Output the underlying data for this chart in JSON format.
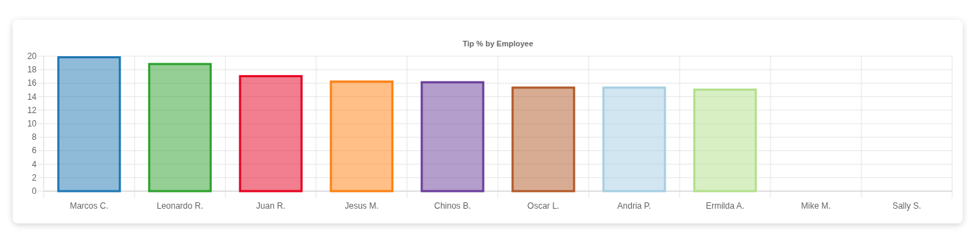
{
  "chart_data": {
    "type": "bar",
    "title": "Tip % by Employee",
    "categories": [
      "Marcos C.",
      "Leonardo R.",
      "Juan R.",
      "Jesus M.",
      "Chinos B.",
      "Oscar L.",
      "Andria P.",
      "Ermilda A.",
      "Mike M.",
      "Sally S."
    ],
    "values": [
      20,
      19,
      17.2,
      16.4,
      16.3,
      15.5,
      15.5,
      15.2,
      0,
      0
    ],
    "colors": [
      "#1f77b4",
      "#2ca02c",
      "#e6001f",
      "#ff7f0e",
      "#6a3d9a",
      "#b15928",
      "#a6cee3",
      "#b2df8a",
      "#999999",
      "#999999"
    ],
    "ylim": [
      0,
      20
    ],
    "yticks": [
      0,
      2,
      4,
      6,
      8,
      10,
      12,
      14,
      16,
      18,
      20
    ],
    "grid": true
  }
}
